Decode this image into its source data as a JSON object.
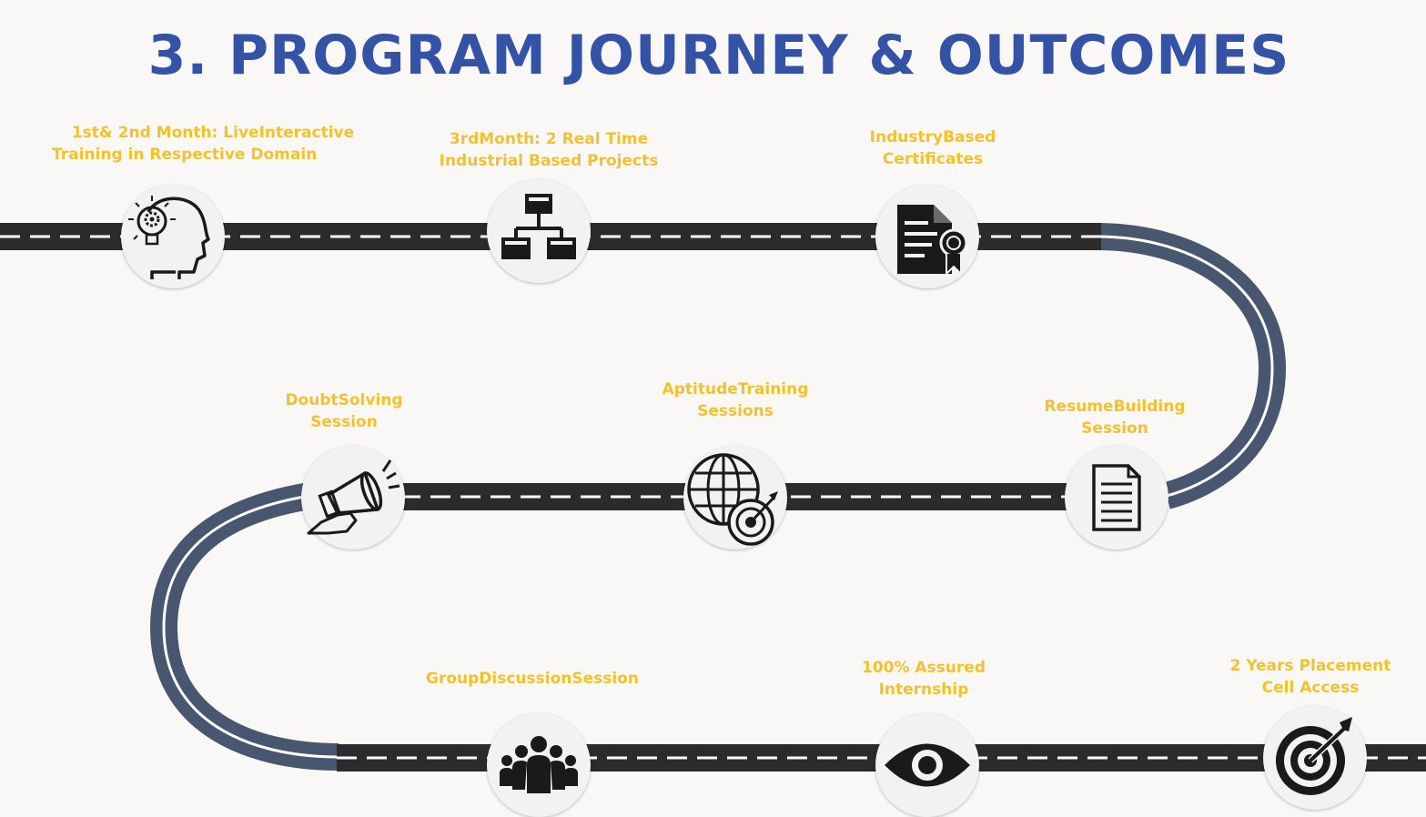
{
  "title": "3. PROGRAM JOURNEY & OUTCOMES",
  "colors": {
    "title": "#3553a6",
    "label": "#f2c12e",
    "road": "#2b2b2b",
    "curve": "#48566f",
    "dash": "#ffffff"
  },
  "steps": [
    {
      "line1": "1st& 2nd Month: LiveInteractive",
      "line2": "Training in Respective Domain",
      "icon": "head-gear-bulb-icon"
    },
    {
      "line1": "3rdMonth: 2 Real Time",
      "line2": "Industrial Based Projects",
      "icon": "hierarchy-icon"
    },
    {
      "line1": "IndustryBased",
      "line2": "Certificates",
      "icon": "certificate-icon"
    },
    {
      "line1": "ResumeBuilding",
      "line2": "Session",
      "icon": "document-icon"
    },
    {
      "line1": "AptitudeTraining",
      "line2": "Sessions",
      "icon": "globe-target-icon"
    },
    {
      "line1": "DoubtSolving",
      "line2": "Session",
      "icon": "megaphone-icon"
    },
    {
      "line1": "GroupDiscussionSession",
      "line2": "",
      "icon": "group-icon"
    },
    {
      "line1": "100% Assured",
      "line2": "Internship",
      "icon": "eye-icon"
    },
    {
      "line1": "2 Years Placement",
      "line2": "Cell Access",
      "icon": "target-icon"
    }
  ]
}
